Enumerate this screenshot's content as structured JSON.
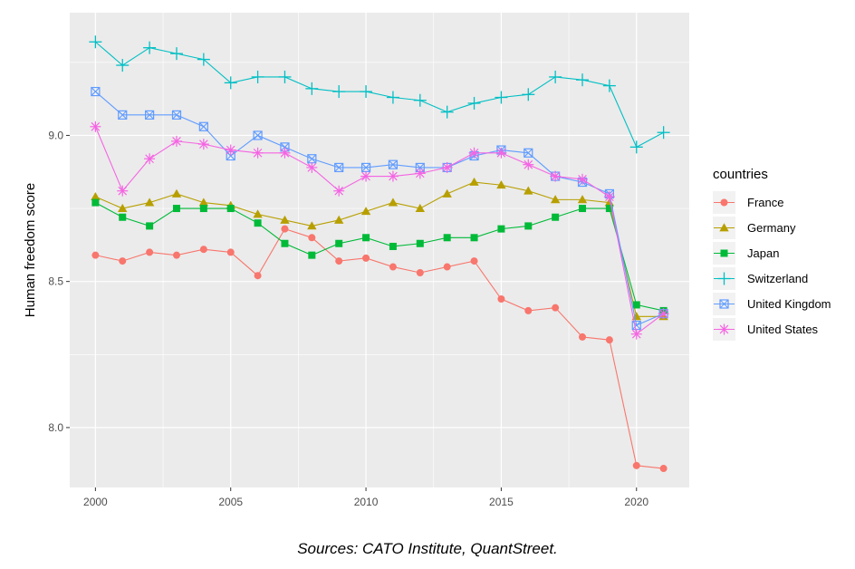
{
  "chart_data": {
    "type": "line",
    "title": "",
    "xlabel": "",
    "ylabel": "Human freedom score",
    "xlim": [
      1999.05,
      2021.95
    ],
    "ylim": [
      7.795,
      9.42
    ],
    "x_ticks": [
      2000,
      2005,
      2010,
      2015,
      2020
    ],
    "y_ticks": [
      8.0,
      8.5,
      9.0
    ],
    "y_tick_labels": [
      "8.0",
      "8.5",
      "9.0"
    ],
    "grid": true,
    "legend": {
      "title": "countries",
      "position": "right"
    },
    "x": [
      2000,
      2001,
      2002,
      2003,
      2004,
      2005,
      2006,
      2007,
      2008,
      2009,
      2010,
      2011,
      2012,
      2013,
      2014,
      2015,
      2016,
      2017,
      2018,
      2019,
      2020,
      2021
    ],
    "series": [
      {
        "name": "France",
        "color": "#F8766D",
        "marker": "circle",
        "values": [
          8.59,
          8.57,
          8.6,
          8.59,
          8.61,
          8.6,
          8.52,
          8.68,
          8.65,
          8.57,
          8.58,
          8.55,
          8.53,
          8.55,
          8.57,
          8.44,
          8.4,
          8.41,
          8.31,
          8.3,
          7.87,
          7.86
        ]
      },
      {
        "name": "Germany",
        "color": "#B79F00",
        "marker": "triangle",
        "values": [
          8.79,
          8.75,
          8.77,
          8.8,
          8.77,
          8.76,
          8.73,
          8.71,
          8.69,
          8.71,
          8.74,
          8.77,
          8.75,
          8.8,
          8.84,
          8.83,
          8.81,
          8.78,
          8.78,
          8.77,
          8.38,
          8.38
        ]
      },
      {
        "name": "Japan",
        "color": "#00BA38",
        "marker": "square",
        "values": [
          8.77,
          8.72,
          8.69,
          8.75,
          8.75,
          8.75,
          8.7,
          8.63,
          8.59,
          8.63,
          8.65,
          8.62,
          8.63,
          8.65,
          8.65,
          8.68,
          8.69,
          8.72,
          8.75,
          8.75,
          8.42,
          8.4
        ]
      },
      {
        "name": "Switzerland",
        "color": "#00BFC4",
        "marker": "plus",
        "values": [
          9.32,
          9.24,
          9.3,
          9.28,
          9.26,
          9.18,
          9.2,
          9.2,
          9.16,
          9.15,
          9.15,
          9.13,
          9.12,
          9.08,
          9.11,
          9.13,
          9.14,
          9.2,
          9.19,
          9.17,
          8.96,
          9.01
        ]
      },
      {
        "name": "United Kingdom",
        "color": "#619CFF",
        "marker": "square-x",
        "values": [
          9.15,
          9.07,
          9.07,
          9.07,
          9.03,
          8.93,
          9.0,
          8.96,
          8.92,
          8.89,
          8.89,
          8.9,
          8.89,
          8.89,
          8.93,
          8.95,
          8.94,
          8.86,
          8.84,
          8.8,
          8.35,
          8.39
        ]
      },
      {
        "name": "United States",
        "color": "#F564E3",
        "marker": "asterisk",
        "values": [
          9.03,
          8.81,
          8.92,
          8.98,
          8.97,
          8.95,
          8.94,
          8.94,
          8.89,
          8.81,
          8.86,
          8.86,
          8.87,
          8.89,
          8.94,
          8.94,
          8.9,
          8.86,
          8.85,
          8.79,
          8.32,
          8.39
        ]
      }
    ]
  },
  "source_note": "Sources: CATO Institute, QuantStreet."
}
